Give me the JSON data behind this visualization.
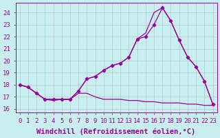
{
  "bg_color": "#c8eef0",
  "line_color": "#990099",
  "xlim": [
    -0.5,
    23.5
  ],
  "ylim": [
    15.7,
    24.8
  ],
  "yticks": [
    16,
    17,
    18,
    19,
    20,
    21,
    22,
    23,
    24
  ],
  "xticks": [
    0,
    1,
    2,
    3,
    4,
    5,
    6,
    7,
    8,
    9,
    10,
    11,
    12,
    13,
    14,
    15,
    16,
    17,
    18,
    19,
    20,
    21,
    22,
    23
  ],
  "xlabel": "Windchill (Refroidissement éolien,°C)",
  "line1_x": [
    0,
    1,
    2,
    3,
    4,
    5,
    6,
    7,
    8,
    9,
    10,
    11,
    12,
    13,
    14,
    15,
    16,
    17,
    18,
    19,
    20,
    21,
    22,
    23
  ],
  "line1_y": [
    18.0,
    17.8,
    17.3,
    16.8,
    16.7,
    16.8,
    16.8,
    17.3,
    17.3,
    17.0,
    16.8,
    16.8,
    16.8,
    16.7,
    16.7,
    16.6,
    16.6,
    16.5,
    16.5,
    16.5,
    16.4,
    16.4,
    16.3,
    16.3
  ],
  "line2_x": [
    0,
    1,
    2,
    3,
    4,
    5,
    6,
    7,
    8,
    9,
    10,
    11,
    12,
    13,
    14,
    15,
    16,
    17,
    18,
    19,
    20,
    21,
    22,
    23
  ],
  "line2_y": [
    18.0,
    17.8,
    17.3,
    16.8,
    16.8,
    16.8,
    16.8,
    17.5,
    18.5,
    18.7,
    19.2,
    19.6,
    19.8,
    20.3,
    21.8,
    22.0,
    23.0,
    24.4,
    23.3,
    21.7,
    20.3,
    19.5,
    18.3,
    16.4
  ],
  "line3_x": [
    0,
    1,
    2,
    3,
    4,
    5,
    6,
    7,
    8,
    9,
    10,
    11,
    12,
    13,
    14,
    15,
    16,
    17,
    18,
    19,
    20,
    21,
    22,
    23
  ],
  "line3_y": [
    18.0,
    17.8,
    17.3,
    16.8,
    16.8,
    16.8,
    16.8,
    17.5,
    18.5,
    18.7,
    19.2,
    19.6,
    19.8,
    20.3,
    21.8,
    22.3,
    24.0,
    24.4,
    23.3,
    21.7,
    20.3,
    19.5,
    18.3,
    16.4
  ],
  "tick_fontsize": 6.5,
  "xlabel_fontsize": 7.5
}
